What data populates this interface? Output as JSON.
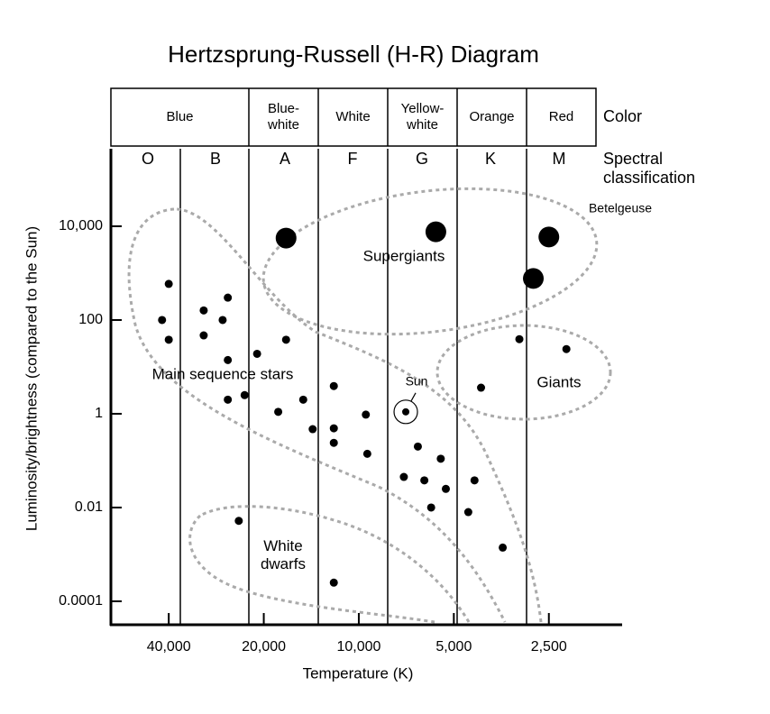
{
  "chart_data": {
    "type": "scatter",
    "title": "Hertzsprung-Russell (H-R) Diagram",
    "x_label": "Temperature (K)",
    "y_label": "Luminosity/brightness (compared to the Sun)",
    "color_header": "Color",
    "colors": [
      "Blue",
      "Blue-white",
      "White",
      "Yellow-white",
      "Orange",
      "Red"
    ],
    "spectral_header": "Spectral classification",
    "spectral_classes": [
      "O",
      "B",
      "A",
      "F",
      "G",
      "K",
      "M"
    ],
    "regions": [
      "Supergiants",
      "Main sequence stars",
      "Giants",
      "White dwarfs"
    ],
    "annotations": [
      "Betelgeuse"
    ],
    "x_scale": "log",
    "y_scale": "log",
    "xlim": [
      61000,
      1465
    ],
    "ylim": [
      3.16e-05,
      450000
    ],
    "xticks": [
      {
        "value": 40000,
        "label": "40,000"
      },
      {
        "value": 20000,
        "label": "20,000"
      },
      {
        "value": 10000,
        "label": "10,000"
      },
      {
        "value": 5000,
        "label": "5,000"
      },
      {
        "value": 2500,
        "label": "2,500"
      }
    ],
    "yticks": [
      {
        "value": 10000,
        "label": "10,000"
      },
      100,
      1,
      0.01,
      0.0001
    ],
    "series": [
      {
        "color": "#000000",
        "x": [
          17000,
          5700,
          2500,
          2800
        ],
        "values": [
          5600,
          7600,
          5900,
          770
        ]
      },
      {
        "color": "#000000",
        "x": [
          40000,
          42000,
          40000,
          26000,
          31000,
          27000,
          31000,
          26000,
          21000,
          17000,
          23000,
          26000,
          18000,
          15000,
          12000,
          14000,
          12000,
          12000,
          9500,
          9400,
          6500,
          5500,
          7200,
          6200,
          5300,
          5900,
          4500,
          4300,
          3500,
          3100,
          2200,
          4100,
          24000,
          12000
        ],
        "values": [
          590,
          100,
          38,
          300,
          160,
          100,
          47,
          14,
          19,
          38,
          2.5,
          2.0,
          1.1,
          2.0,
          3.9,
          0.47,
          0.49,
          0.24,
          0.96,
          0.14,
          0.2,
          0.11,
          0.045,
          0.038,
          0.025,
          0.01,
          0.008,
          0.038,
          0.0014,
          39,
          24,
          3.6,
          0.0052,
          0.00025
        ]
      },
      {
        "name": "Sun",
        "color": "#000000",
        "x": [
          7100
        ],
        "values": [
          1.1
        ]
      }
    ]
  }
}
